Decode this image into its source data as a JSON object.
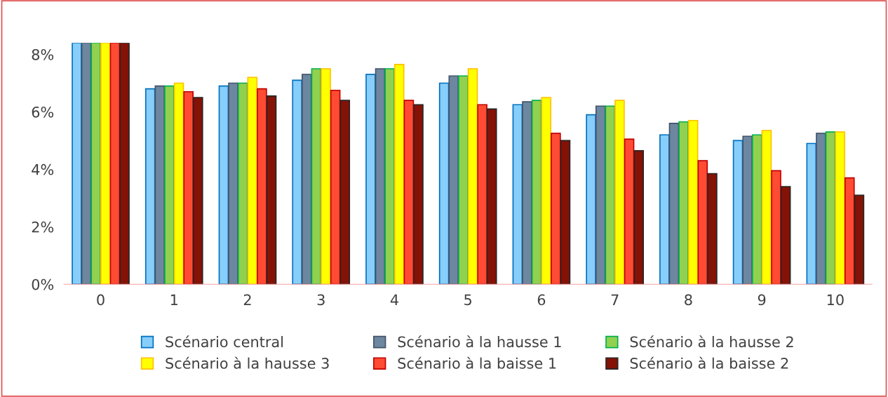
{
  "chart_data": {
    "type": "bar",
    "categories": [
      "0",
      "1",
      "2",
      "3",
      "4",
      "5",
      "6",
      "7",
      "8",
      "9",
      "10"
    ],
    "series": [
      {
        "name": "Scénario central",
        "color": "#87cefa",
        "values": [
          8.4,
          6.8,
          6.9,
          7.1,
          7.3,
          7.0,
          6.25,
          5.9,
          5.2,
          5.0,
          4.9
        ]
      },
      {
        "name": "Scénario à la hausse 1",
        "color": "#6d87a0",
        "values": [
          8.4,
          6.9,
          7.0,
          7.3,
          7.5,
          7.25,
          6.35,
          6.2,
          5.6,
          5.15,
          5.25
        ]
      },
      {
        "name": "Scénario à la hausse 2",
        "color": "#92d050",
        "values": [
          8.4,
          6.9,
          7.0,
          7.5,
          7.5,
          7.25,
          6.4,
          6.2,
          5.65,
          5.2,
          5.3
        ]
      },
      {
        "name": "Scénario à la hausse 3",
        "color": "#ffff00",
        "values": [
          8.4,
          7.0,
          7.2,
          7.5,
          7.65,
          7.5,
          6.5,
          6.4,
          5.7,
          5.35,
          5.3
        ]
      },
      {
        "name": "Scénario à la baisse 1",
        "color": "#ff4b33",
        "values": [
          8.4,
          6.7,
          6.8,
          6.75,
          6.4,
          6.25,
          5.25,
          5.05,
          4.3,
          3.95,
          3.7
        ]
      },
      {
        "name": "Scénario à la baisse 2",
        "color": "#841206",
        "values": [
          8.4,
          6.5,
          6.55,
          6.4,
          6.25,
          6.1,
          5.0,
          4.65,
          3.85,
          3.4,
          3.1
        ]
      }
    ],
    "ylim": [
      0,
      8.4
    ],
    "yticks": [
      {
        "value": 0,
        "label": "0%"
      },
      {
        "value": 2,
        "label": "2%"
      },
      {
        "value": 4,
        "label": "4%"
      },
      {
        "value": 6,
        "label": "6%"
      },
      {
        "value": 8,
        "label": "8%"
      }
    ],
    "grid": false,
    "legend": "bottom"
  }
}
